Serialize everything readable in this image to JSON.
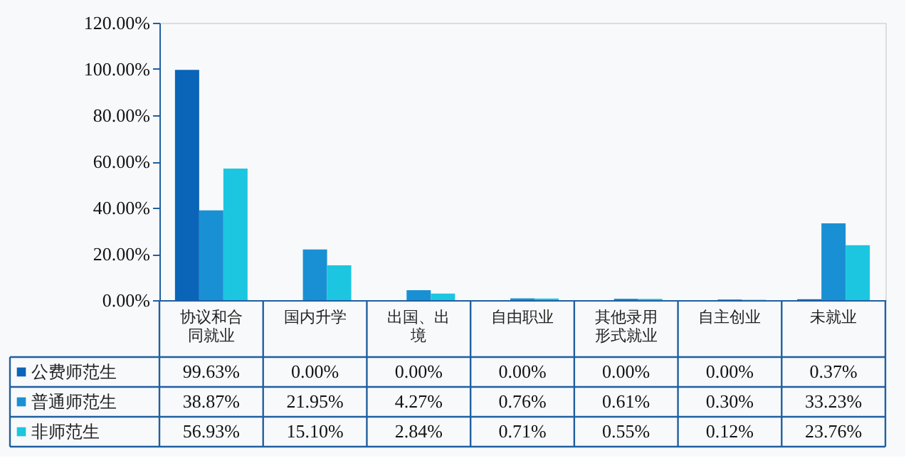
{
  "chart_data": {
    "type": "bar",
    "categories": [
      "协议和合同就业",
      "国内升学",
      "出国、出境",
      "自由职业",
      "其他录用形式就业",
      "自主创业",
      "未就业"
    ],
    "series": [
      {
        "name": "公费师范生",
        "color": "#0a64b8",
        "values": [
          99.63,
          0.0,
          0.0,
          0.0,
          0.0,
          0.0,
          0.37
        ],
        "value_labels": [
          "99.63%",
          "0.00%",
          "0.00%",
          "0.00%",
          "0.00%",
          "0.00%",
          "0.37%"
        ]
      },
      {
        "name": "普通师范生",
        "color": "#1a90d4",
        "values": [
          38.87,
          21.95,
          4.27,
          0.76,
          0.61,
          0.3,
          33.23
        ],
        "value_labels": [
          "38.87%",
          "21.95%",
          "4.27%",
          "0.76%",
          "0.61%",
          "0.30%",
          "33.23%"
        ]
      },
      {
        "name": "非师范生",
        "color": "#1cc6e0",
        "values": [
          56.93,
          15.1,
          2.84,
          0.71,
          0.55,
          0.12,
          23.76
        ],
        "value_labels": [
          "56.93%",
          "15.10%",
          "2.84%",
          "0.71%",
          "0.55%",
          "0.12%",
          "23.76%"
        ]
      }
    ],
    "ylim": [
      0,
      120
    ],
    "yticks": [
      {
        "value": 0,
        "label": "0.00%"
      },
      {
        "value": 20,
        "label": "20.00%"
      },
      {
        "value": 40,
        "label": "40.00%"
      },
      {
        "value": 60,
        "label": "60.00%"
      },
      {
        "value": 80,
        "label": "80.00%"
      },
      {
        "value": 100,
        "label": "100.00%"
      },
      {
        "value": 120,
        "label": "120.00%"
      }
    ],
    "grid": false,
    "legend": "bottom left",
    "data_labels": true
  }
}
